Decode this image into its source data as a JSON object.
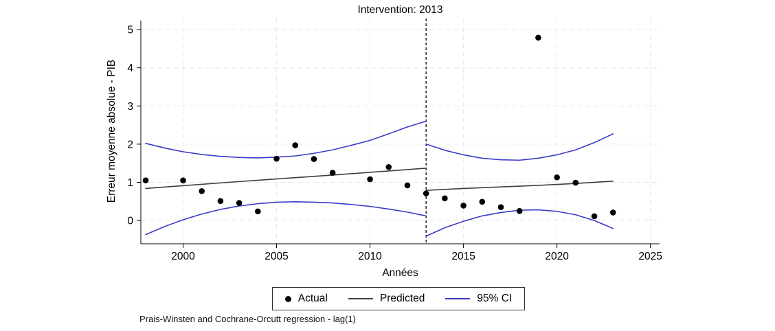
{
  "title": "Intervention: 2013",
  "footnote": "Prais-Winsten and Cochrane-Orcutt regression - lag(1)",
  "legend": {
    "items": [
      {
        "label": "Actual",
        "marker": "dot",
        "color": "#000000"
      },
      {
        "label": "Predicted",
        "marker": "line",
        "color": "#404040"
      },
      {
        "label": "95% CI",
        "marker": "line",
        "color": "#3a3ac8"
      }
    ]
  },
  "colors": {
    "actual": "#000000",
    "predicted": "#3d3d3d",
    "ci": "#3a3ac8",
    "grid": "#e7e7e7",
    "axis": "#000000",
    "intervention_line": "#000000"
  },
  "chart_data": {
    "type": "line",
    "title": "Intervention: 2013",
    "xlabel": "Années",
    "ylabel": "Erreur moyenne absolue - PIB",
    "xlim": [
      1997.74,
      2025.49
    ],
    "ylim": [
      -0.61,
      5.29
    ],
    "x_ticks": [
      2000,
      2005,
      2010,
      2015,
      2020,
      2025
    ],
    "y_ticks": [
      0,
      1,
      2,
      3,
      4,
      5
    ],
    "grid": true,
    "legend_position": "bottom",
    "intervention_year": 2013,
    "series": [
      {
        "name": "Actual",
        "type": "scatter",
        "color": "#000000",
        "points": [
          [
            1998,
            1.05
          ],
          [
            2000,
            1.05
          ],
          [
            2001,
            0.77
          ],
          [
            2002,
            0.51
          ],
          [
            2003,
            0.46
          ],
          [
            2004,
            0.24
          ],
          [
            2005,
            1.62
          ],
          [
            2006,
            1.97
          ],
          [
            2007,
            1.61
          ],
          [
            2008,
            1.25
          ],
          [
            2010,
            1.08
          ],
          [
            2011,
            1.4
          ],
          [
            2012,
            0.92
          ],
          [
            2013,
            0.71
          ],
          [
            2014,
            0.58
          ],
          [
            2015,
            0.39
          ],
          [
            2016,
            0.49
          ],
          [
            2017,
            0.35
          ],
          [
            2018,
            0.25
          ],
          [
            2019,
            4.79
          ],
          [
            2020,
            1.13
          ],
          [
            2021,
            0.99
          ],
          [
            2022,
            0.11
          ],
          [
            2023,
            0.21
          ]
        ]
      },
      {
        "name": "Predicted (pre-intervention)",
        "type": "line",
        "color": "#3d3d3d",
        "points": [
          [
            1998,
            0.84
          ],
          [
            2003,
            1.02
          ],
          [
            2008,
            1.19
          ],
          [
            2013,
            1.37
          ]
        ]
      },
      {
        "name": "Predicted (post-intervention)",
        "type": "line",
        "color": "#3d3d3d",
        "points": [
          [
            2013,
            0.79
          ],
          [
            2015,
            0.84
          ],
          [
            2017,
            0.88
          ],
          [
            2019,
            0.92
          ],
          [
            2021,
            0.97
          ],
          [
            2023,
            1.03
          ]
        ]
      },
      {
        "name": "95% CI upper (pre-intervention)",
        "type": "line",
        "color": "#3a3ac8",
        "points": [
          [
            1998,
            2.02
          ],
          [
            1999,
            1.9
          ],
          [
            2000,
            1.8
          ],
          [
            2001,
            1.73
          ],
          [
            2002,
            1.68
          ],
          [
            2003,
            1.65
          ],
          [
            2004,
            1.64
          ],
          [
            2005,
            1.66
          ],
          [
            2006,
            1.69
          ],
          [
            2007,
            1.76
          ],
          [
            2008,
            1.85
          ],
          [
            2009,
            1.97
          ],
          [
            2010,
            2.1
          ],
          [
            2011,
            2.27
          ],
          [
            2012,
            2.45
          ],
          [
            2013,
            2.6
          ]
        ]
      },
      {
        "name": "95% CI lower (pre-intervention)",
        "type": "line",
        "color": "#3a3ac8",
        "points": [
          [
            1998,
            -0.37
          ],
          [
            1999,
            -0.16
          ],
          [
            2000,
            0.02
          ],
          [
            2001,
            0.17
          ],
          [
            2002,
            0.29
          ],
          [
            2003,
            0.38
          ],
          [
            2004,
            0.44
          ],
          [
            2005,
            0.48
          ],
          [
            2006,
            0.49
          ],
          [
            2007,
            0.48
          ],
          [
            2008,
            0.46
          ],
          [
            2009,
            0.42
          ],
          [
            2010,
            0.37
          ],
          [
            2011,
            0.3
          ],
          [
            2012,
            0.22
          ],
          [
            2013,
            0.12
          ]
        ]
      },
      {
        "name": "95% CI upper (post-intervention)",
        "type": "line",
        "color": "#3a3ac8",
        "points": [
          [
            2013,
            2.0
          ],
          [
            2014,
            1.84
          ],
          [
            2015,
            1.72
          ],
          [
            2016,
            1.63
          ],
          [
            2017,
            1.59
          ],
          [
            2018,
            1.58
          ],
          [
            2019,
            1.63
          ],
          [
            2020,
            1.72
          ],
          [
            2021,
            1.85
          ],
          [
            2022,
            2.04
          ],
          [
            2023,
            2.27
          ]
        ]
      },
      {
        "name": "95% CI lower (post-intervention)",
        "type": "line",
        "color": "#3a3ac8",
        "points": [
          [
            2013,
            -0.41
          ],
          [
            2014,
            -0.19
          ],
          [
            2015,
            -0.02
          ],
          [
            2016,
            0.12
          ],
          [
            2017,
            0.21
          ],
          [
            2018,
            0.27
          ],
          [
            2019,
            0.28
          ],
          [
            2020,
            0.24
          ],
          [
            2021,
            0.15
          ],
          [
            2022,
            0.0
          ],
          [
            2023,
            -0.21
          ]
        ]
      }
    ]
  }
}
